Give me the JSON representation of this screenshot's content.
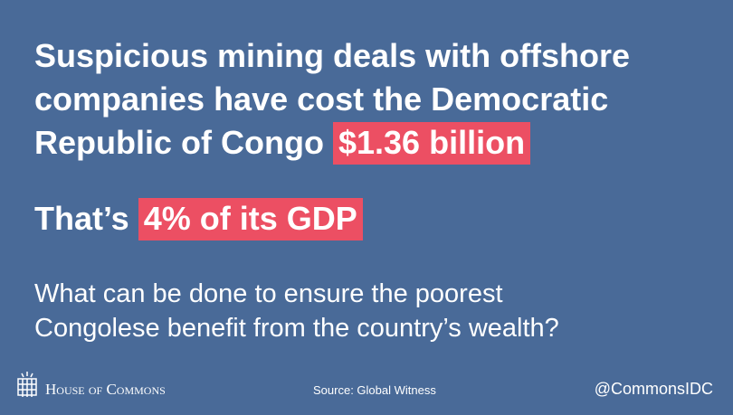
{
  "headline": {
    "lines": [
      "Suspicious mining deals with offshore",
      "companies have cost the Democratic",
      "Republic of Congo"
    ],
    "highlight": "$1.36 billion"
  },
  "comparison": {
    "text": "That’s",
    "highlight": "4% of its GDP"
  },
  "question": {
    "lines": [
      "What can be done to ensure the poorest",
      "Congolese benefit from the country’s wealth?"
    ]
  },
  "footer": {
    "logo": "House of Commons",
    "source": "Source: Global Witness",
    "handle": "@CommonsIDC"
  }
}
